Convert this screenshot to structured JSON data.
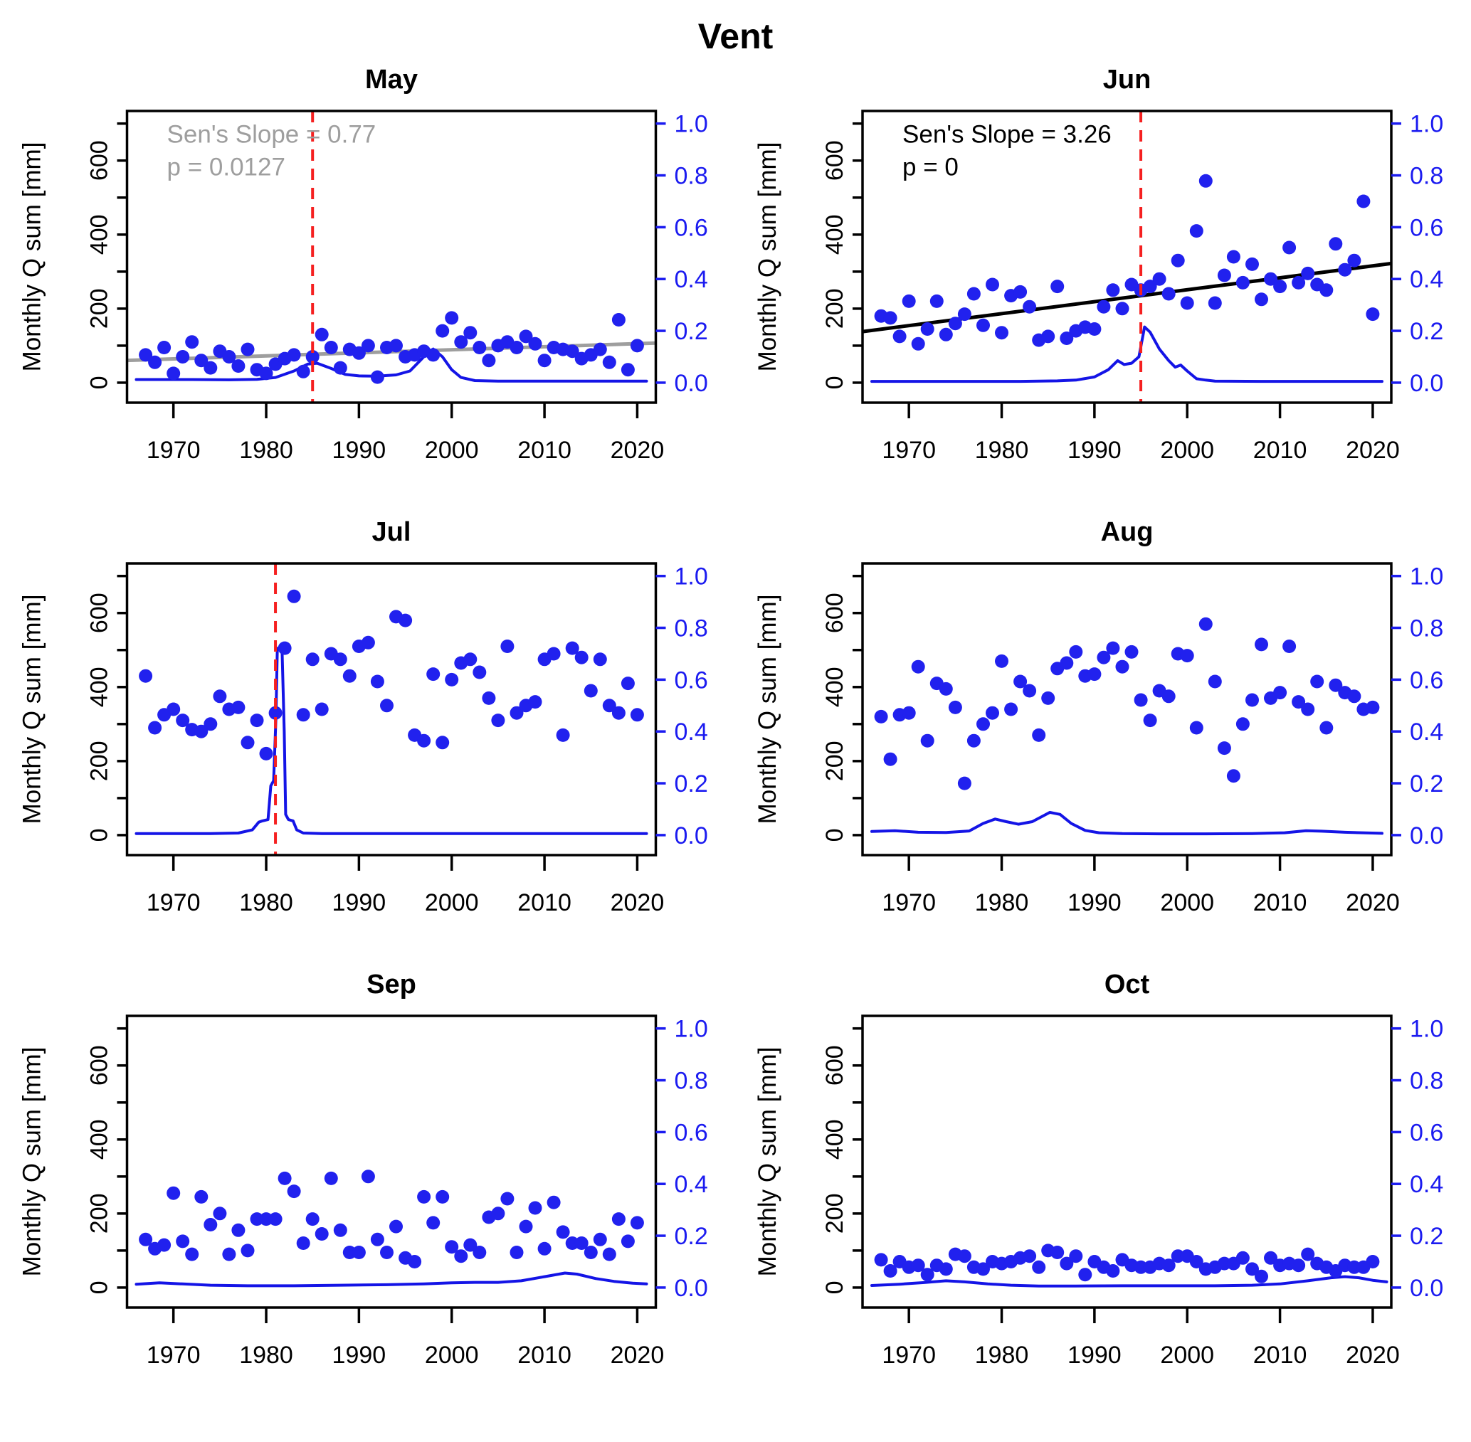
{
  "title": "Vent",
  "colors": {
    "point_blue": "#2121ee",
    "curve_blue": "#1414e6",
    "axis_blue": "#1b1bf0",
    "red_dashed": "#f52020",
    "gray": "#9e9e9e",
    "black": "#000000"
  },
  "chart_data": {
    "type": "scatter",
    "title": "Vent",
    "ylabel": "Monthly Q sum [mm]",
    "axis": {
      "xlim": [
        1965,
        2022
      ],
      "ylim_mm": [
        -54,
        734
      ],
      "x_ticks": [
        1970,
        1980,
        1990,
        2000,
        2010,
        2020
      ],
      "left_ticks": [
        0,
        100,
        200,
        300,
        400,
        500,
        600,
        700
      ],
      "left_labeled_ticks": [
        0,
        200,
        400,
        600
      ],
      "right_ticks": [
        0.0,
        0.2,
        0.4,
        0.6,
        0.8,
        1.0
      ],
      "right_tick_labels": [
        "0.0",
        "0.2",
        "0.4",
        "0.6",
        "0.8",
        "1.0"
      ],
      "right_axis_scale_mm_per_unit": 700,
      "grid": "off",
      "legend": "none"
    },
    "x": [
      1967,
      1968,
      1969,
      1970,
      1971,
      1972,
      1973,
      1974,
      1975,
      1976,
      1977,
      1978,
      1979,
      1980,
      1981,
      1982,
      1983,
      1984,
      1985,
      1986,
      1987,
      1988,
      1989,
      1990,
      1991,
      1992,
      1993,
      1994,
      1995,
      1996,
      1997,
      1998,
      1999,
      2000,
      2001,
      2002,
      2003,
      2004,
      2005,
      2006,
      2007,
      2008,
      2009,
      2010,
      2011,
      2012,
      2013,
      2014,
      2015,
      2016,
      2017,
      2018,
      2019,
      2020
    ],
    "panels": [
      {
        "title": "May",
        "values": [
          75,
          55,
          95,
          25,
          70,
          110,
          60,
          40,
          85,
          70,
          45,
          90,
          35,
          25,
          50,
          65,
          75,
          30,
          70,
          130,
          95,
          40,
          90,
          80,
          100,
          15,
          95,
          100,
          70,
          75,
          85,
          75,
          140,
          175,
          110,
          135,
          95,
          60,
          100,
          110,
          95,
          125,
          105,
          60,
          95,
          90,
          85,
          65,
          75,
          90,
          55,
          170,
          35,
          100
        ],
        "annotation": {
          "line1": "Sen's Slope =  0.77",
          "line2": "p =  0.0127",
          "color": "gray"
        },
        "trend": {
          "color": "gray",
          "x": [
            1965,
            2022
          ],
          "y": [
            60,
            107
          ]
        },
        "change_point": 1985,
        "density": [
          [
            1966,
            0.012
          ],
          [
            1972,
            0.012
          ],
          [
            1976,
            0.011
          ],
          [
            1979,
            0.013
          ],
          [
            1981,
            0.02
          ],
          [
            1983,
            0.045
          ],
          [
            1984.5,
            0.072
          ],
          [
            1985.5,
            0.075
          ],
          [
            1987,
            0.055
          ],
          [
            1988.5,
            0.032
          ],
          [
            1990,
            0.026
          ],
          [
            1992,
            0.025
          ],
          [
            1994,
            0.03
          ],
          [
            1995.5,
            0.045
          ],
          [
            1997,
            0.1
          ],
          [
            1998,
            0.13
          ],
          [
            1999,
            0.1
          ],
          [
            2000,
            0.05
          ],
          [
            2001,
            0.02
          ],
          [
            2002.5,
            0.008
          ],
          [
            2005,
            0.006
          ],
          [
            2010,
            0.006
          ],
          [
            2015,
            0.006
          ],
          [
            2021,
            0.006
          ]
        ]
      },
      {
        "title": "Jun",
        "values": [
          180,
          175,
          125,
          220,
          105,
          145,
          220,
          130,
          160,
          185,
          240,
          155,
          265,
          135,
          235,
          245,
          205,
          115,
          125,
          260,
          120,
          140,
          150,
          145,
          205,
          250,
          200,
          265,
          250,
          260,
          280,
          240,
          330,
          215,
          410,
          545,
          215,
          290,
          340,
          270,
          320,
          225,
          280,
          260,
          365,
          270,
          295,
          265,
          250,
          375,
          305,
          330,
          490,
          185
        ],
        "annotation": {
          "line1": "Sen's Slope =  3.26",
          "line2": "p =  0",
          "color": "black"
        },
        "trend": {
          "color": "black",
          "x": [
            1965,
            2022
          ],
          "y": [
            138,
            322
          ]
        },
        "change_point": 1995,
        "density": [
          [
            1966,
            0.005
          ],
          [
            1975,
            0.005
          ],
          [
            1982,
            0.005
          ],
          [
            1986,
            0.007
          ],
          [
            1988,
            0.01
          ],
          [
            1990,
            0.022
          ],
          [
            1991.5,
            0.05
          ],
          [
            1992.5,
            0.085
          ],
          [
            1993.2,
            0.07
          ],
          [
            1994,
            0.075
          ],
          [
            1994.8,
            0.1
          ],
          [
            1995.4,
            0.215
          ],
          [
            1996,
            0.195
          ],
          [
            1997,
            0.13
          ],
          [
            1998,
            0.085
          ],
          [
            1998.7,
            0.06
          ],
          [
            1999.3,
            0.068
          ],
          [
            2000,
            0.045
          ],
          [
            2001,
            0.015
          ],
          [
            2002,
            0.01
          ],
          [
            2003,
            0.006
          ],
          [
            2008,
            0.005
          ],
          [
            2015,
            0.005
          ],
          [
            2021,
            0.005
          ]
        ]
      },
      {
        "title": "Jul",
        "values": [
          430,
          290,
          325,
          340,
          310,
          285,
          280,
          300,
          375,
          340,
          345,
          250,
          310,
          220,
          330,
          505,
          645,
          325,
          475,
          340,
          490,
          475,
          430,
          510,
          520,
          415,
          350,
          590,
          580,
          270,
          255,
          435,
          250,
          420,
          465,
          475,
          440,
          370,
          310,
          510,
          330,
          350,
          360,
          475,
          490,
          270,
          505,
          480,
          390,
          475,
          350,
          330,
          410,
          325
        ],
        "annotation": null,
        "trend": null,
        "change_point": 1981,
        "density": [
          [
            1966,
            0.006
          ],
          [
            1974,
            0.006
          ],
          [
            1977,
            0.008
          ],
          [
            1978.5,
            0.02
          ],
          [
            1979.2,
            0.05
          ],
          [
            1979.6,
            0.055
          ],
          [
            1980.2,
            0.06
          ],
          [
            1980.5,
            0.19
          ],
          [
            1980.8,
            0.21
          ],
          [
            1981.05,
            0.45
          ],
          [
            1981.2,
            0.72
          ],
          [
            1981.7,
            0.73
          ],
          [
            1981.95,
            0.4
          ],
          [
            1982.1,
            0.08
          ],
          [
            1982.4,
            0.06
          ],
          [
            1982.9,
            0.055
          ],
          [
            1983.3,
            0.02
          ],
          [
            1984,
            0.008
          ],
          [
            1986,
            0.006
          ],
          [
            1995,
            0.006
          ],
          [
            2010,
            0.006
          ],
          [
            2021,
            0.006
          ]
        ]
      },
      {
        "title": "Aug",
        "values": [
          320,
          205,
          325,
          330,
          455,
          255,
          410,
          395,
          345,
          140,
          255,
          300,
          330,
          470,
          340,
          415,
          390,
          270,
          370,
          450,
          465,
          495,
          430,
          435,
          480,
          505,
          455,
          495,
          365,
          310,
          390,
          375,
          490,
          485,
          290,
          570,
          415,
          235,
          160,
          300,
          365,
          515,
          370,
          385,
          510,
          360,
          340,
          415,
          290,
          405,
          385,
          375,
          340,
          345
        ],
        "annotation": null,
        "trend": null,
        "change_point": null,
        "density": [
          [
            1966,
            0.014
          ],
          [
            1968.5,
            0.017
          ],
          [
            1971,
            0.011
          ],
          [
            1974,
            0.01
          ],
          [
            1976.5,
            0.016
          ],
          [
            1978,
            0.045
          ],
          [
            1979.3,
            0.062
          ],
          [
            1980.5,
            0.052
          ],
          [
            1981.8,
            0.042
          ],
          [
            1983.3,
            0.052
          ],
          [
            1985.2,
            0.088
          ],
          [
            1986.3,
            0.08
          ],
          [
            1987.5,
            0.045
          ],
          [
            1989,
            0.018
          ],
          [
            1990.5,
            0.009
          ],
          [
            1993,
            0.006
          ],
          [
            1997,
            0.005
          ],
          [
            2002,
            0.005
          ],
          [
            2007,
            0.006
          ],
          [
            2010.5,
            0.009
          ],
          [
            2012.8,
            0.017
          ],
          [
            2014.5,
            0.015
          ],
          [
            2017,
            0.011
          ],
          [
            2021,
            0.007
          ]
        ]
      },
      {
        "title": "Sep",
        "values": [
          130,
          105,
          115,
          255,
          125,
          90,
          245,
          170,
          200,
          90,
          155,
          100,
          185,
          185,
          185,
          295,
          260,
          120,
          185,
          145,
          295,
          155,
          95,
          95,
          300,
          130,
          95,
          165,
          80,
          70,
          245,
          175,
          245,
          110,
          85,
          115,
          95,
          190,
          200,
          240,
          95,
          165,
          215,
          105,
          230,
          150,
          120,
          120,
          95,
          130,
          90,
          185,
          125,
          175
        ],
        "annotation": null,
        "trend": null,
        "change_point": null,
        "density": [
          [
            1966,
            0.013
          ],
          [
            1968.5,
            0.018
          ],
          [
            1971,
            0.014
          ],
          [
            1974,
            0.009
          ],
          [
            1978,
            0.007
          ],
          [
            1983,
            0.007
          ],
          [
            1988,
            0.009
          ],
          [
            1993,
            0.011
          ],
          [
            1997,
            0.014
          ],
          [
            2000,
            0.018
          ],
          [
            2002.5,
            0.02
          ],
          [
            2005,
            0.02
          ],
          [
            2007.5,
            0.026
          ],
          [
            2010,
            0.042
          ],
          [
            2012.2,
            0.056
          ],
          [
            2013.5,
            0.052
          ],
          [
            2015.5,
            0.035
          ],
          [
            2017.5,
            0.024
          ],
          [
            2019.5,
            0.017
          ],
          [
            2021,
            0.014
          ]
        ]
      },
      {
        "title": "Oct",
        "values": [
          75,
          45,
          70,
          55,
          60,
          35,
          60,
          50,
          90,
          85,
          55,
          50,
          70,
          65,
          70,
          80,
          85,
          55,
          100,
          95,
          65,
          85,
          35,
          70,
          55,
          45,
          75,
          60,
          55,
          55,
          65,
          60,
          85,
          85,
          70,
          50,
          55,
          65,
          65,
          80,
          50,
          30,
          80,
          60,
          65,
          60,
          90,
          65,
          55,
          45,
          60,
          55,
          55,
          70
        ],
        "annotation": null,
        "trend": null,
        "change_point": null,
        "density": [
          [
            1966,
            0.008
          ],
          [
            1969,
            0.013
          ],
          [
            1971.5,
            0.019
          ],
          [
            1974,
            0.026
          ],
          [
            1976,
            0.022
          ],
          [
            1978.5,
            0.014
          ],
          [
            1981,
            0.009
          ],
          [
            1984,
            0.006
          ],
          [
            1988,
            0.006
          ],
          [
            1993,
            0.007
          ],
          [
            1998,
            0.007
          ],
          [
            2003,
            0.007
          ],
          [
            2007,
            0.009
          ],
          [
            2010,
            0.014
          ],
          [
            2013,
            0.026
          ],
          [
            2015.5,
            0.038
          ],
          [
            2017,
            0.042
          ],
          [
            2018.5,
            0.038
          ],
          [
            2020,
            0.028
          ],
          [
            2021.5,
            0.022
          ]
        ]
      }
    ]
  }
}
